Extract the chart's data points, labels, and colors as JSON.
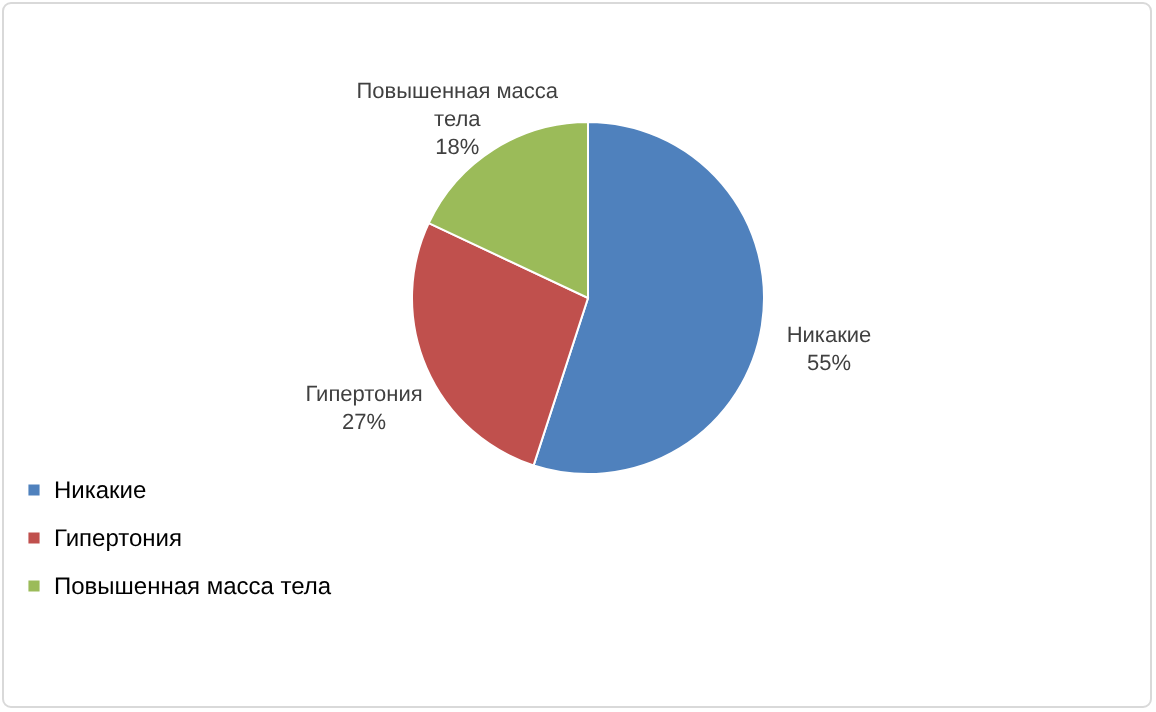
{
  "chart_data": {
    "type": "pie",
    "categories": [
      "Никакие",
      "Гипертония",
      "Повышенная масса тела"
    ],
    "values": [
      55,
      27,
      18
    ],
    "colors": [
      "#4f81bd",
      "#c0504d",
      "#9bbb59"
    ],
    "value_labels": [
      "55%",
      "27%",
      "18%"
    ],
    "legend": "bottom left"
  }
}
